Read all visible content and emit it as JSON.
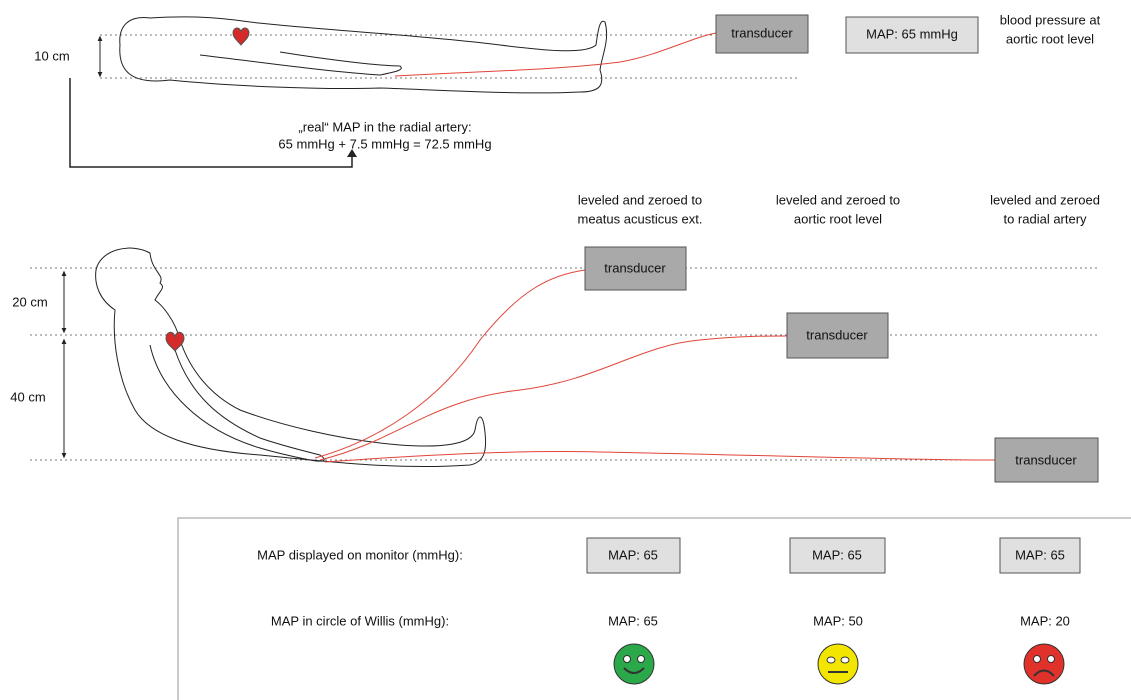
{
  "top": {
    "distance": "10 cm",
    "transducer": "transducer",
    "monitor": "MAP: 65 mmHg",
    "note": [
      "blood pressure at",
      "aortic root level"
    ],
    "real_map": [
      "„real“ MAP in the radial artery:",
      "65 mmHg + 7.5 mmHg = 72.5 mmHg"
    ]
  },
  "bottom": {
    "distances": [
      "20 cm",
      "40 cm"
    ],
    "columns": [
      {
        "header": [
          "leveled and zeroed to",
          "meatus acusticus ext."
        ],
        "transducer": "transducer",
        "monitor": "MAP: 65",
        "willis": "MAP: 65"
      },
      {
        "header": [
          "leveled and zeroed to",
          "aortic root level"
        ],
        "transducer": "transducer",
        "monitor": "MAP: 65",
        "willis": "MAP: 50"
      },
      {
        "header": [
          "leveled and zeroed",
          "to radial artery"
        ],
        "transducer": "transducer",
        "monitor": "MAP: 65",
        "willis": "MAP: 20"
      }
    ]
  },
  "table": {
    "row_labels": [
      "MAP displayed on monitor (mmHg):",
      "MAP in circle of Willis (mmHg):"
    ]
  }
}
